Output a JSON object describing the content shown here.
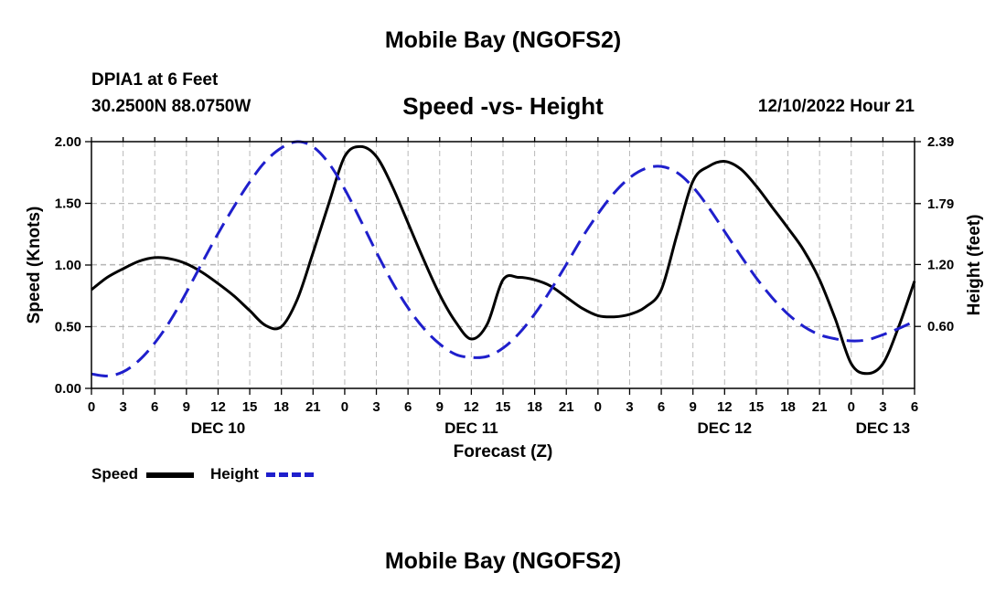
{
  "header": {
    "title": "Mobile Bay (NGOFS2)",
    "station": "DPIA1 at 6 Feet",
    "coordinates": "30.2500N  88.0750W",
    "subtitle": "Speed -vs- Height",
    "datetime": "12/10/2022 Hour 21"
  },
  "footer": {
    "title": "Mobile Bay (NGOFS2)"
  },
  "legend": {
    "speed_label": "Speed",
    "height_label": "Height"
  },
  "colors": {
    "speed": "#000000",
    "height": "#1f1fcc",
    "grid": "#b8b8b8"
  },
  "chart_data": {
    "type": "line",
    "xlabel": "Forecast (Z)",
    "ylabel": "Speed (Knots)",
    "y2label": "Height (feet)",
    "xlim": [
      0,
      78
    ],
    "ylim": [
      0,
      2.0
    ],
    "y2lim": [
      0,
      2.39
    ],
    "grid": true,
    "x_ticks": [
      0,
      3,
      6,
      9,
      12,
      15,
      18,
      21,
      24,
      27,
      30,
      33,
      36,
      39,
      42,
      45,
      48,
      51,
      54,
      57,
      60,
      63,
      66,
      69,
      72,
      75,
      78
    ],
    "x_tick_labels": [
      "0",
      "3",
      "6",
      "9",
      "12",
      "15",
      "18",
      "21",
      "0",
      "3",
      "6",
      "9",
      "12",
      "15",
      "18",
      "21",
      "0",
      "3",
      "6",
      "9",
      "12",
      "15",
      "18",
      "21",
      "0",
      "3",
      "6"
    ],
    "y_ticks": [
      0,
      0.5,
      1.0,
      1.5,
      2.0
    ],
    "y_tick_labels": [
      "0.00",
      "0.50",
      "1.00",
      "1.50",
      "2.00"
    ],
    "y2_ticks": [
      0.6,
      1.2,
      1.79,
      2.39
    ],
    "y2_tick_labels": [
      "0.60",
      "1.20",
      "1.79",
      "2.39"
    ],
    "day_labels": [
      {
        "label": "DEC 10",
        "x": 12
      },
      {
        "label": "DEC 11",
        "x": 36
      },
      {
        "label": "DEC 12",
        "x": 60
      },
      {
        "label": "DEC 13",
        "x": 75
      }
    ],
    "series": [
      {
        "name": "Speed",
        "axis": "left",
        "style": "solid",
        "x": [
          0,
          1.5,
          3,
          4.5,
          6,
          7.5,
          9,
          10.5,
          12,
          13.5,
          15,
          16.5,
          18,
          19.5,
          21,
          22.5,
          24,
          25.5,
          27,
          28.5,
          30,
          31.5,
          33,
          34.5,
          36,
          37.5,
          39,
          40.5,
          42,
          43.5,
          45,
          46.5,
          48,
          49.5,
          51,
          52.5,
          54,
          55.5,
          57,
          58.5,
          60,
          61.5,
          63,
          64.5,
          66,
          67.5,
          69,
          70.5,
          72,
          73.5,
          75,
          76.5,
          78
        ],
        "values": [
          0.8,
          0.9,
          0.97,
          1.03,
          1.06,
          1.05,
          1.01,
          0.94,
          0.85,
          0.75,
          0.63,
          0.51,
          0.5,
          0.72,
          1.1,
          1.5,
          1.88,
          1.96,
          1.88,
          1.64,
          1.34,
          1.04,
          0.76,
          0.54,
          0.4,
          0.52,
          0.88,
          0.9,
          0.88,
          0.83,
          0.74,
          0.65,
          0.59,
          0.58,
          0.6,
          0.66,
          0.8,
          1.25,
          1.68,
          1.8,
          1.84,
          1.78,
          1.64,
          1.47,
          1.3,
          1.12,
          0.88,
          0.56,
          0.2,
          0.12,
          0.2,
          0.5,
          0.87
        ]
      },
      {
        "name": "Height",
        "axis": "right",
        "style": "dashed",
        "x": [
          0,
          1.5,
          3,
          4.5,
          6,
          7.5,
          9,
          10.5,
          12,
          13.5,
          15,
          16.5,
          18,
          19.5,
          21,
          22.5,
          24,
          25.5,
          27,
          28.5,
          30,
          31.5,
          33,
          34.5,
          36,
          37.5,
          39,
          40.5,
          42,
          43.5,
          45,
          46.5,
          48,
          49.5,
          51,
          52.5,
          54,
          55.5,
          57,
          58.5,
          60,
          61.5,
          63,
          64.5,
          66,
          67.5,
          69,
          70.5,
          72,
          73.5,
          75,
          76.5,
          78
        ],
        "values": [
          0.14,
          0.12,
          0.16,
          0.27,
          0.44,
          0.66,
          0.93,
          1.22,
          1.5,
          1.76,
          2.0,
          2.2,
          2.33,
          2.39,
          2.34,
          2.18,
          1.93,
          1.63,
          1.32,
          1.03,
          0.78,
          0.58,
          0.43,
          0.33,
          0.3,
          0.31,
          0.39,
          0.53,
          0.72,
          0.95,
          1.2,
          1.46,
          1.69,
          1.89,
          2.04,
          2.13,
          2.15,
          2.09,
          1.95,
          1.75,
          1.52,
          1.29,
          1.07,
          0.88,
          0.72,
          0.6,
          0.52,
          0.48,
          0.46,
          0.47,
          0.52,
          0.58,
          0.65
        ]
      }
    ]
  }
}
